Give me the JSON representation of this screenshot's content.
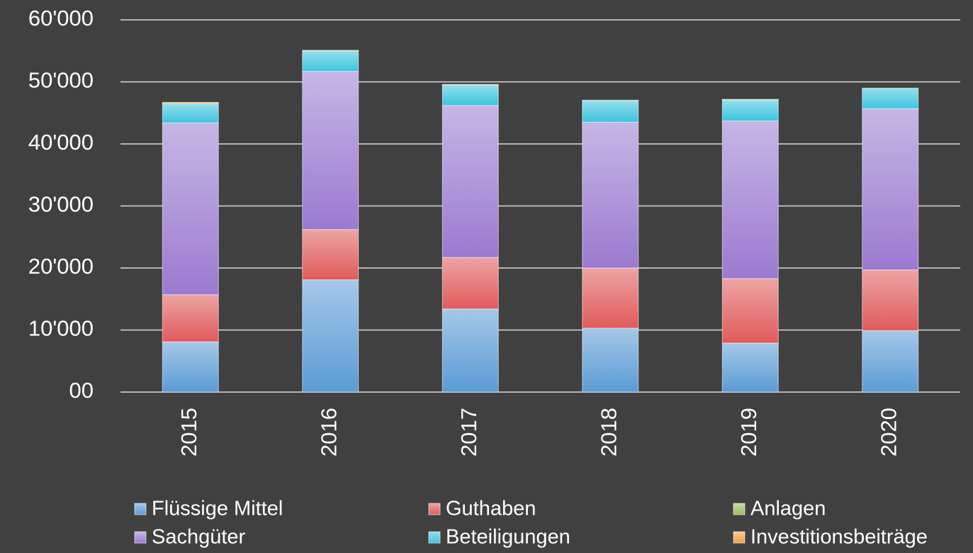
{
  "chart_data": {
    "type": "stacked_bar",
    "categories": [
      "2015",
      "2016",
      "2017",
      "2018",
      "2019",
      "2020"
    ],
    "series": [
      {
        "name": "Flüssige Mittel",
        "color": "#5b9bd5",
        "values": [
          8100,
          18100,
          13400,
          10300,
          7900,
          9900
        ]
      },
      {
        "name": "Guthaben",
        "color": "#e05a5a",
        "values": [
          7600,
          8100,
          8300,
          9700,
          10400,
          9800
        ]
      },
      {
        "name": "Anlagen",
        "color": "#9bbb59",
        "values": [
          0,
          0,
          0,
          0,
          0,
          0
        ]
      },
      {
        "name": "Sachgüter",
        "color": "#9a7ad0",
        "values": [
          27700,
          25500,
          24500,
          23500,
          25400,
          26000
        ]
      },
      {
        "name": "Beteiligungen",
        "color": "#3cc4de",
        "values": [
          3100,
          3300,
          3300,
          3500,
          3400,
          3300
        ]
      },
      {
        "name": "Investitionsbeiträge",
        "color": "#f2a040",
        "values": [
          200,
          100,
          100,
          50,
          100,
          0
        ]
      }
    ],
    "ylim": [
      0,
      60000
    ],
    "yticks": [
      {
        "value": 0,
        "label": "00"
      },
      {
        "value": 10000,
        "label": "10'000"
      },
      {
        "value": 20000,
        "label": "20'000"
      },
      {
        "value": 30000,
        "label": "30'000"
      },
      {
        "value": 40000,
        "label": "40'000"
      },
      {
        "value": 50000,
        "label": "50'000"
      },
      {
        "value": 60000,
        "label": "60'000"
      }
    ],
    "grid": true,
    "legend": "bottom"
  }
}
